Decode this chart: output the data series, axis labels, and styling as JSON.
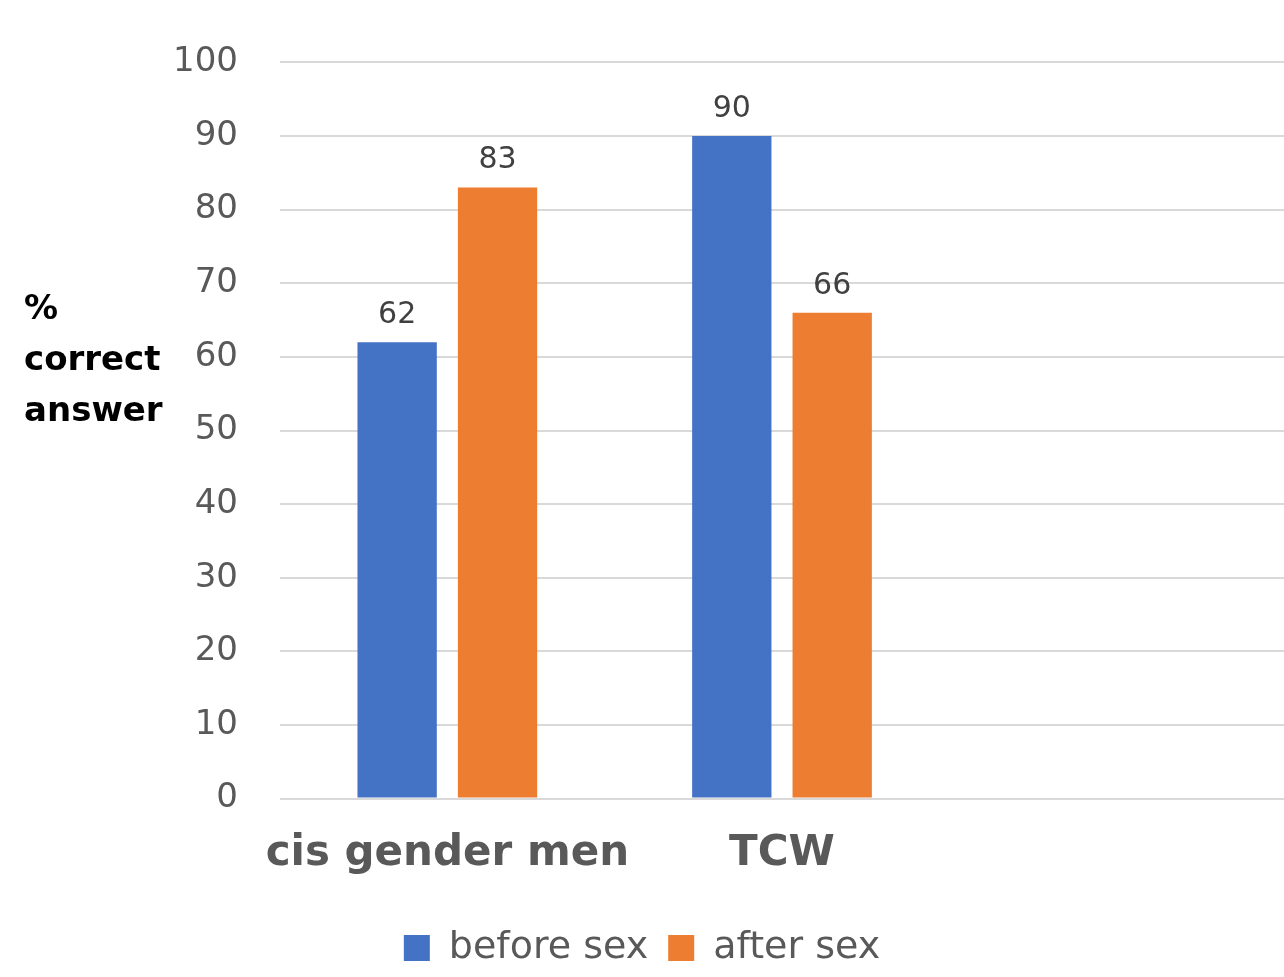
{
  "chart_data": {
    "type": "bar",
    "ylabel": "% correct answer",
    "categories": [
      "cis gender men",
      "TCW",
      null
    ],
    "series": [
      {
        "name": "before sex",
        "color": "#4472c4",
        "values": [
          62,
          90,
          null
        ]
      },
      {
        "name": "after sex",
        "color": "#ed7d31",
        "values": [
          83,
          66,
          null
        ]
      }
    ],
    "ylim": [
      0,
      100
    ],
    "yticks": [
      0,
      10,
      20,
      30,
      40,
      50,
      60,
      70,
      80,
      90,
      100
    ],
    "grid": "y",
    "legend": "bottom",
    "data_labels": true
  }
}
